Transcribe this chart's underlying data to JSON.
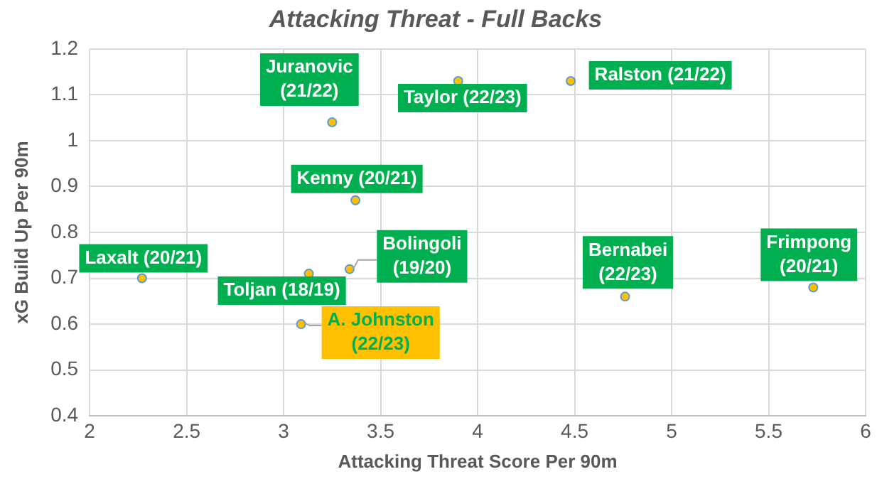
{
  "chart_data": {
    "type": "scatter",
    "title": "Attacking Threat - Full Backs",
    "xlabel": "Attacking Threat Score Per 90m",
    "ylabel": "xG Build Up Per 90m",
    "xlim": [
      2,
      6
    ],
    "xticks": [
      2,
      2.5,
      3,
      3.5,
      4,
      4.5,
      5,
      5.5,
      6
    ],
    "ylim": [
      0.4,
      1.2
    ],
    "yticks": [
      0.4,
      0.5,
      0.6,
      0.7,
      0.8,
      0.9,
      1,
      1.1,
      1.2
    ],
    "grid": true,
    "legend": false,
    "marker": "circle",
    "series": [
      {
        "color": "#ffc000",
        "x": [
          3.25,
          3.9,
          4.48,
          3.37,
          3.34,
          3.13,
          2.27,
          4.76,
          5.73
        ],
        "values": [
          1.04,
          1.13,
          1.13,
          0.87,
          0.72,
          0.71,
          0.7,
          0.66,
          0.68
        ],
        "value_labels": [
          "Juranovic (21/22)",
          "Taylor (22/23)",
          "Ralston (21/22)",
          "Kenny (20/21)",
          "Bolingoli (19/20)",
          "Toljan (18/19)",
          "Laxalt (20/21)",
          "Bernabei (22/23)",
          "Frimpong (20/21)"
        ]
      },
      {
        "color": "#ffc000",
        "x": [
          3.09
        ],
        "values": [
          0.6
        ],
        "value_labels": [
          "A. Johnston (22/23)"
        ]
      }
    ]
  }
}
